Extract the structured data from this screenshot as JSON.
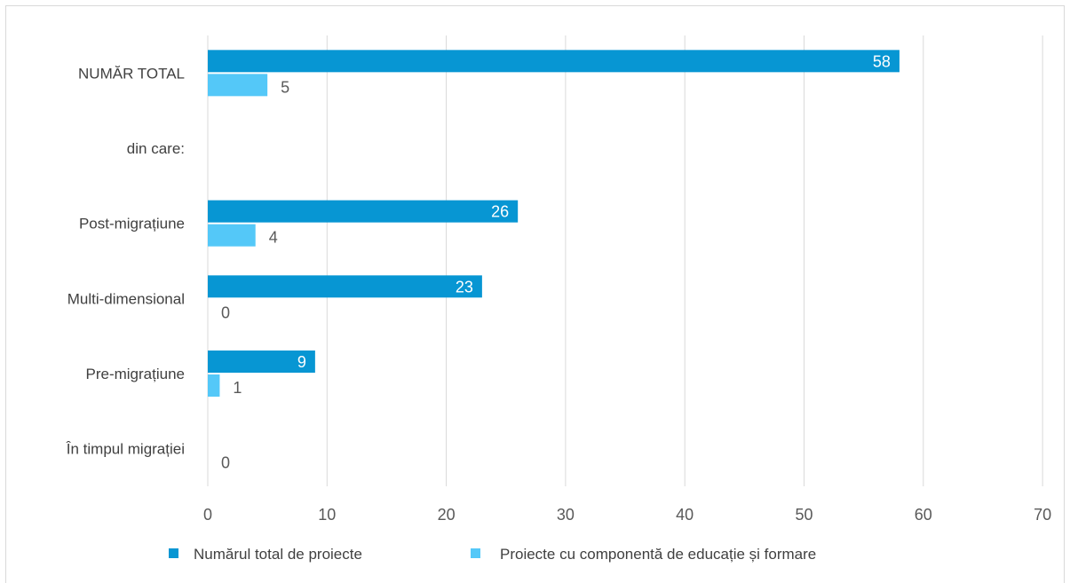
{
  "chart_data": {
    "type": "bar",
    "orientation": "horizontal",
    "categories": [
      "NUMĂR TOTAL",
      "din care:",
      "Post-migrațiune",
      "Multi-dimensional",
      "Pre-migrațiune",
      "În timpul migrației"
    ],
    "series": [
      {
        "name": "Numărul total de proiecte",
        "color": "#0796D3",
        "values": [
          58,
          null,
          26,
          23,
          9,
          null
        ]
      },
      {
        "name": "Proiecte cu componentă de educație și formare",
        "color": "#54C8F8",
        "values": [
          5,
          null,
          4,
          0,
          1,
          0
        ]
      }
    ],
    "x_ticks": [
      0,
      10,
      20,
      30,
      40,
      50,
      60,
      70
    ],
    "xlim": [
      0,
      70
    ],
    "grid": "vertical",
    "legend_position": "bottom",
    "title": "",
    "xlabel": "",
    "ylabel": ""
  }
}
